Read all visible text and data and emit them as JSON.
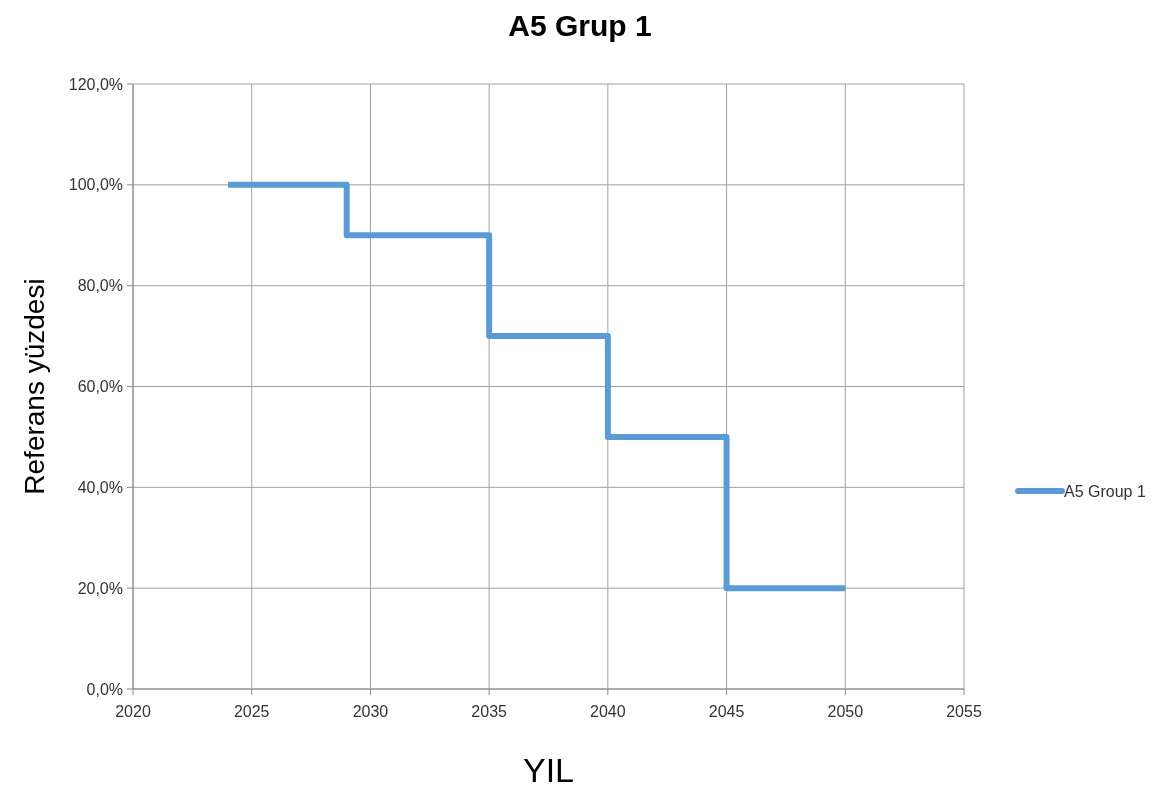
{
  "chart_data": {
    "type": "step",
    "title": "A5 Grup 1",
    "xlabel": "YIL",
    "ylabel": "Referans yüzdesi",
    "x": [
      2024,
      2029,
      2035,
      2040,
      2045,
      2050
    ],
    "series": [
      {
        "name": "A5 Group 1",
        "color": "#5b9bd5",
        "values": [
          100,
          90,
          70,
          50,
          20,
          20
        ]
      }
    ],
    "xlim": [
      2020,
      2055
    ],
    "xticks": [
      2020,
      2025,
      2030,
      2035,
      2040,
      2045,
      2050,
      2055
    ],
    "ylim": [
      0,
      120
    ],
    "yticks": [
      {
        "value": 0,
        "label": "0,0%"
      },
      {
        "value": 20,
        "label": "20,0%"
      },
      {
        "value": 40,
        "label": "40,0%"
      },
      {
        "value": 60,
        "label": "60,0%"
      },
      {
        "value": 80,
        "label": "80,0%"
      },
      {
        "value": 100,
        "label": "100,0%"
      },
      {
        "value": 120,
        "label": "120,0%"
      }
    ],
    "grid": true,
    "legend": "right",
    "marker": "none",
    "line_style": "solid"
  }
}
